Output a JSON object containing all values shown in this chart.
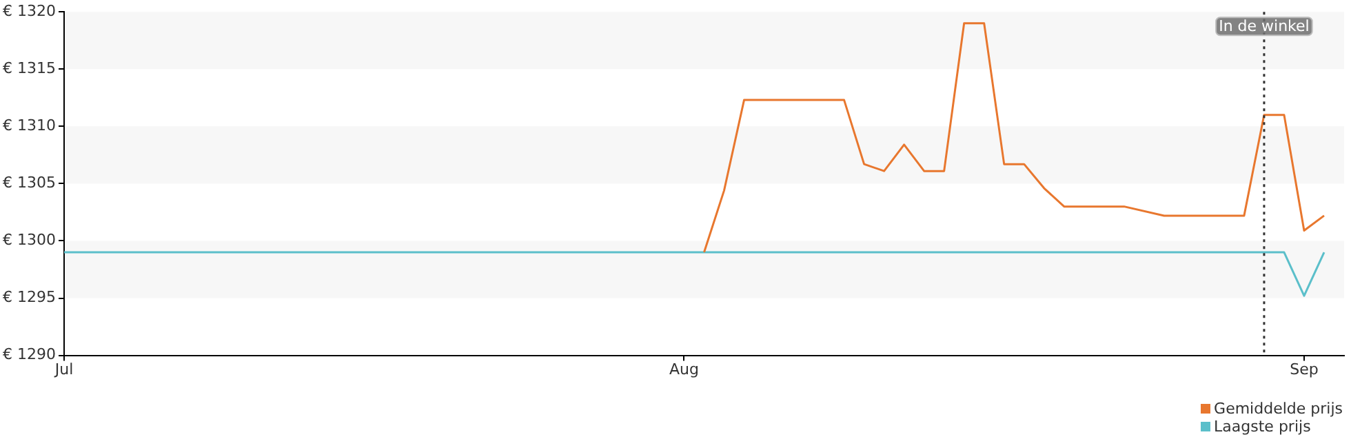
{
  "chart_data": {
    "type": "line",
    "x": [
      "--08-02",
      "--08-03",
      "--08-04",
      "--08-09",
      "--08-10",
      "--08-11",
      "--08-12",
      "--08-13",
      "--08-14",
      "--08-15",
      "--08-16",
      "--08-17",
      "--08-18",
      "--08-19",
      "--08-20",
      "--08-23",
      "--08-25",
      "--08-29",
      "--08-30",
      "--08-31",
      "--09-01",
      "--09-02"
    ],
    "series": [
      {
        "name": "Gemiddelde prijs",
        "color": "#e8772e",
        "values": [
          1299,
          1304.4,
          1312.3,
          1312.3,
          1306.7,
          1306.1,
          1308.4,
          1306.1,
          1306.1,
          1319,
          1319,
          1306.7,
          1306.7,
          1304.6,
          1303,
          1303,
          1302.2,
          1302.2,
          1311,
          1311,
          1300.9,
          1302.2
        ]
      },
      {
        "name": "Laagste prijs",
        "color": "#5bbfca",
        "x": [
          "--07-01",
          "--08-31",
          "--09-01",
          "--09-02"
        ],
        "values": [
          1299,
          1299,
          1295.2,
          1299
        ]
      }
    ],
    "xlim": [
      "--07-01",
      "--09-03"
    ],
    "xticks": [
      {
        "value": "--07-01",
        "label": "Jul"
      },
      {
        "value": "--08-01",
        "label": "Aug"
      },
      {
        "value": "--09-01",
        "label": "Sep"
      }
    ],
    "ylim": [
      1290,
      1320
    ],
    "yticks": [
      {
        "value": 1290,
        "label": "€ 1290"
      },
      {
        "value": 1295,
        "label": "€ 1295"
      },
      {
        "value": 1300,
        "label": "€ 1300"
      },
      {
        "value": 1305,
        "label": "€ 1305"
      },
      {
        "value": 1310,
        "label": "€ 1310"
      },
      {
        "value": 1315,
        "label": "€ 1315"
      },
      {
        "value": 1320,
        "label": "€ 1320"
      }
    ],
    "ref_lines": [
      {
        "axis": "x",
        "value": "--08-30",
        "label": "In de winkel",
        "line_style": "dotted",
        "color": "#333333"
      }
    ],
    "legend": "bottom right",
    "marker": "none",
    "line_style": "solid"
  }
}
